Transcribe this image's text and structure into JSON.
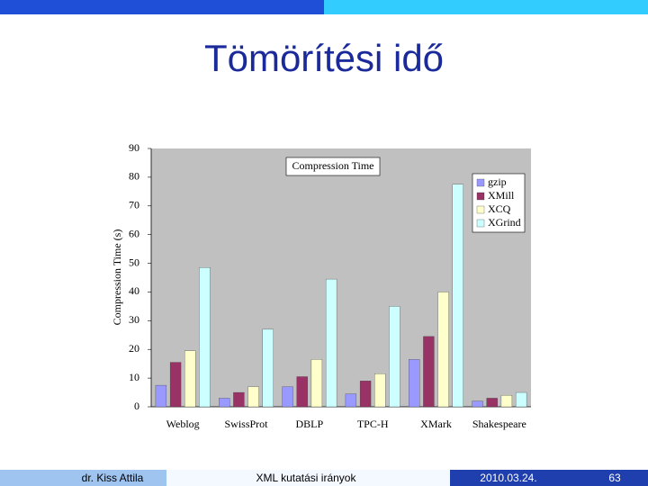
{
  "slide_title": "Tömörítési idő",
  "footer": {
    "author": "dr. Kiss Attila",
    "topic": "XML kutatási irányok",
    "date": "2010.03.24.",
    "page": "63"
  },
  "chart_data": {
    "type": "bar",
    "title": "Compression Time",
    "y_label": "Compression Time (s)",
    "categories": [
      "Weblog",
      "SwissProt",
      "DBLP",
      "TPC-H",
      "XMark",
      "Shakespeare"
    ],
    "series": [
      {
        "name": "gzip",
        "color": "#9999ff",
        "values": [
          7.5,
          3,
          7,
          4.5,
          16.5,
          2
        ]
      },
      {
        "name": "XMill",
        "color": "#993366",
        "values": [
          15.5,
          5,
          10.5,
          9,
          24.5,
          3
        ]
      },
      {
        "name": "XCQ",
        "color": "#ffffcc",
        "values": [
          19.5,
          7,
          16.5,
          11.5,
          40,
          4
        ]
      },
      {
        "name": "XGrind",
        "color": "#ccffff",
        "values": [
          48.5,
          27,
          44.5,
          35,
          77.5,
          5
        ]
      }
    ],
    "ylim": [
      0,
      90
    ],
    "yticks": [
      0,
      10,
      20,
      30,
      40,
      50,
      60,
      70,
      80,
      90
    ],
    "legend": "upper right"
  }
}
